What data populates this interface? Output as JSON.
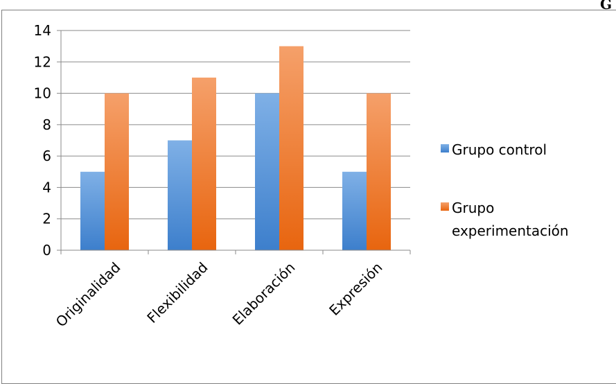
{
  "page": {
    "corner_label": "G"
  },
  "chart_data": {
    "type": "bar",
    "categories": [
      "Originalidad",
      "Flexibilidad",
      "Elaboración",
      "Expresión"
    ],
    "series": [
      {
        "name": "Grupo control",
        "values": [
          5,
          7,
          10,
          5
        ],
        "color": "#4f8fd6"
      },
      {
        "name": "Grupo experimentación",
        "values": [
          10,
          11,
          13,
          10
        ],
        "color": "#f07f2e"
      }
    ],
    "ylim": [
      0,
      14
    ],
    "yticks": [
      0,
      2,
      4,
      6,
      8,
      10,
      12,
      14
    ],
    "grid": true,
    "legend": "right",
    "legend_entries": [
      {
        "lines": [
          "Grupo control"
        ]
      },
      {
        "lines": [
          "Grupo",
          "experimentación"
        ]
      }
    ]
  }
}
